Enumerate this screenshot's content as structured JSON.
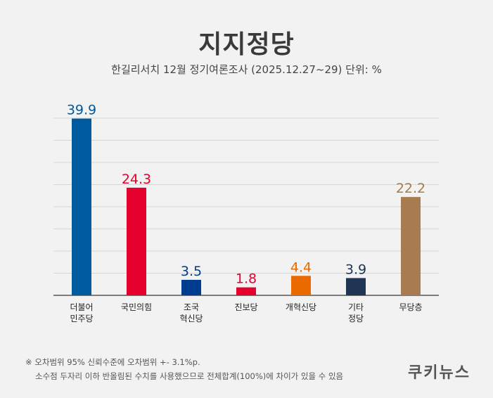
{
  "header": {
    "title": "지지정당",
    "subtitle": "한길리서치 12월 정기여론조사 (2025.12.27~29) 단위: %"
  },
  "chart_data": {
    "type": "bar",
    "title": "지지정당",
    "subtitle": "한길리서치 12월 정기여론조사 (2025.12.27~29) 단위: %",
    "categories": [
      [
        "더불어",
        "민주당"
      ],
      [
        "국민의힘"
      ],
      [
        "조국",
        "혁신당"
      ],
      [
        "진보당"
      ],
      [
        "개혁신당"
      ],
      [
        "기타",
        "정당"
      ],
      [
        "무당층"
      ]
    ],
    "values": [
      39.9,
      24.3,
      3.5,
      1.8,
      4.4,
      3.9,
      22.2
    ],
    "value_labels": [
      "39.9",
      "24.3",
      "3.5",
      "1.8",
      "4.4",
      "3.9",
      "22.2"
    ],
    "colors": [
      "#005a9e",
      "#e6002d",
      "#003c8f",
      "#e6002d",
      "#ea6a00",
      "#1f3553",
      "#a87c50"
    ],
    "ylim": [
      0,
      40
    ],
    "grid": true,
    "xlabel": "",
    "ylabel": ""
  },
  "footer": {
    "note_line1": "※ 오차범위 95% 신뢰수준에 오차범위 +- 3.1%p.",
    "note_line2": "소수점 두자리 이하 반올림된 수치를 사용했으므로 전체합계(100%)에 차이가 있을 수 있음",
    "logo": "쿠키뉴스"
  }
}
